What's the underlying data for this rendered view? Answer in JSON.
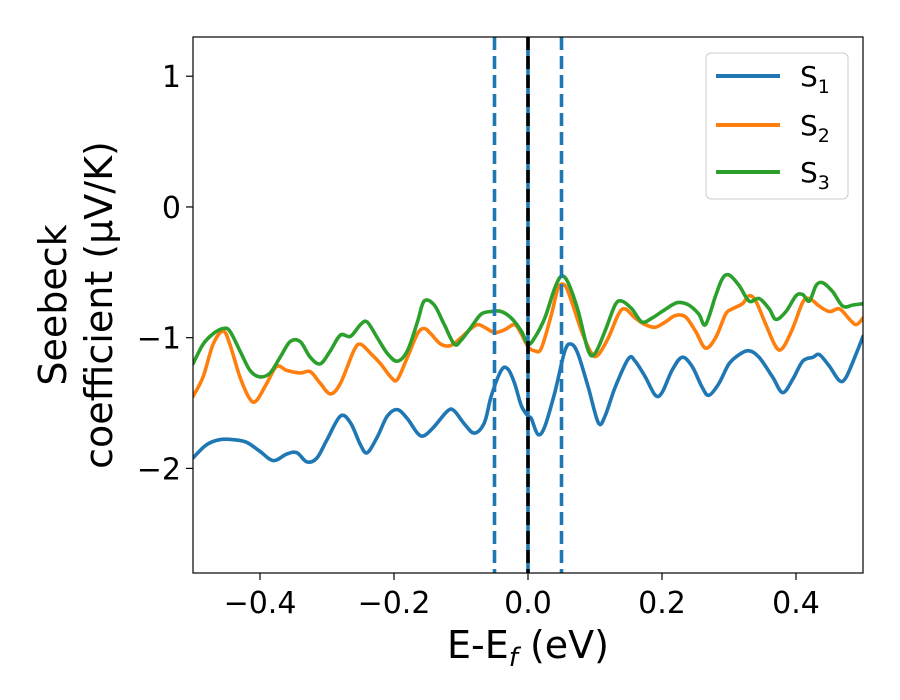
{
  "chart_data": {
    "type": "line",
    "title": "",
    "xlabel": {
      "main": "E-E",
      "sub": "f",
      "suffix": " (eV)"
    },
    "ylabel": {
      "line1": "Seebeck",
      "line2": "coefficient  (μV/K)"
    },
    "xlim": [
      -0.5,
      0.5
    ],
    "ylim": [
      -2.8,
      1.3
    ],
    "xticks": [
      -0.4,
      -0.2,
      0.0,
      0.2,
      0.4
    ],
    "xtick_labels": [
      "−0.4",
      "−0.2",
      "0.0",
      "0.2",
      "0.4"
    ],
    "yticks": [
      -2,
      -1,
      0,
      1
    ],
    "ytick_labels": [
      "−2",
      "−1",
      "0",
      "1"
    ],
    "grid": false,
    "legend_position": "top-right",
    "colors": {
      "S1": "#1f77b4",
      "S2": "#ff7f0e",
      "S3": "#2ca02c",
      "fermi": "#000000",
      "dashed": "#1f77b4"
    },
    "vlines": [
      {
        "x": -0.05,
        "style": "dashed",
        "color": "#1f77b4"
      },
      {
        "x": 0.0,
        "style": "solid",
        "color": "#1f77b4"
      },
      {
        "x": 0.0,
        "style": "dashed",
        "color": "#000000"
      },
      {
        "x": 0.05,
        "style": "dashed",
        "color": "#1f77b4"
      }
    ],
    "series": [
      {
        "name": "S1",
        "label_main": "S",
        "label_sub": "1",
        "color": "#1f77b4",
        "points": [
          [
            -0.5,
            -1.92
          ],
          [
            -0.48,
            -1.82
          ],
          [
            -0.46,
            -1.78
          ],
          [
            -0.44,
            -1.78
          ],
          [
            -0.42,
            -1.8
          ],
          [
            -0.4,
            -1.87
          ],
          [
            -0.38,
            -1.94
          ],
          [
            -0.36,
            -1.89
          ],
          [
            -0.345,
            -1.88
          ],
          [
            -0.33,
            -1.95
          ],
          [
            -0.315,
            -1.92
          ],
          [
            -0.3,
            -1.78
          ],
          [
            -0.28,
            -1.6
          ],
          [
            -0.265,
            -1.65
          ],
          [
            -0.25,
            -1.82
          ],
          [
            -0.24,
            -1.88
          ],
          [
            -0.225,
            -1.76
          ],
          [
            -0.21,
            -1.6
          ],
          [
            -0.195,
            -1.55
          ],
          [
            -0.18,
            -1.62
          ],
          [
            -0.165,
            -1.73
          ],
          [
            -0.155,
            -1.75
          ],
          [
            -0.14,
            -1.68
          ],
          [
            -0.12,
            -1.56
          ],
          [
            -0.11,
            -1.56
          ],
          [
            -0.095,
            -1.66
          ],
          [
            -0.08,
            -1.73
          ],
          [
            -0.065,
            -1.65
          ],
          [
            -0.055,
            -1.45
          ],
          [
            -0.04,
            -1.25
          ],
          [
            -0.03,
            -1.24
          ],
          [
            -0.02,
            -1.35
          ],
          [
            -0.01,
            -1.52
          ],
          [
            0.0,
            -1.6
          ],
          [
            0.005,
            -1.62
          ],
          [
            0.015,
            -1.74
          ],
          [
            0.025,
            -1.68
          ],
          [
            0.04,
            -1.42
          ],
          [
            0.055,
            -1.1
          ],
          [
            0.065,
            -1.05
          ],
          [
            0.075,
            -1.13
          ],
          [
            0.09,
            -1.38
          ],
          [
            0.105,
            -1.65
          ],
          [
            0.115,
            -1.6
          ],
          [
            0.13,
            -1.38
          ],
          [
            0.15,
            -1.16
          ],
          [
            0.16,
            -1.18
          ],
          [
            0.175,
            -1.3
          ],
          [
            0.19,
            -1.44
          ],
          [
            0.2,
            -1.42
          ],
          [
            0.215,
            -1.25
          ],
          [
            0.23,
            -1.15
          ],
          [
            0.245,
            -1.22
          ],
          [
            0.26,
            -1.38
          ],
          [
            0.27,
            -1.44
          ],
          [
            0.285,
            -1.35
          ],
          [
            0.3,
            -1.2
          ],
          [
            0.315,
            -1.13
          ],
          [
            0.33,
            -1.1
          ],
          [
            0.345,
            -1.15
          ],
          [
            0.365,
            -1.3
          ],
          [
            0.38,
            -1.42
          ],
          [
            0.395,
            -1.32
          ],
          [
            0.41,
            -1.18
          ],
          [
            0.425,
            -1.15
          ],
          [
            0.435,
            -1.13
          ],
          [
            0.45,
            -1.22
          ],
          [
            0.465,
            -1.33
          ],
          [
            0.475,
            -1.3
          ],
          [
            0.49,
            -1.12
          ],
          [
            0.5,
            -0.99
          ]
        ]
      },
      {
        "name": "S2",
        "label_main": "S",
        "label_sub": "2",
        "color": "#ff7f0e",
        "points": [
          [
            -0.5,
            -1.45
          ],
          [
            -0.485,
            -1.3
          ],
          [
            -0.47,
            -1.05
          ],
          [
            -0.455,
            -0.95
          ],
          [
            -0.445,
            -1.05
          ],
          [
            -0.43,
            -1.3
          ],
          [
            -0.415,
            -1.47
          ],
          [
            -0.405,
            -1.48
          ],
          [
            -0.39,
            -1.35
          ],
          [
            -0.375,
            -1.22
          ],
          [
            -0.36,
            -1.25
          ],
          [
            -0.34,
            -1.27
          ],
          [
            -0.325,
            -1.26
          ],
          [
            -0.31,
            -1.35
          ],
          [
            -0.295,
            -1.43
          ],
          [
            -0.28,
            -1.35
          ],
          [
            -0.26,
            -1.1
          ],
          [
            -0.25,
            -1.05
          ],
          [
            -0.235,
            -1.12
          ],
          [
            -0.22,
            -1.2
          ],
          [
            -0.205,
            -1.3
          ],
          [
            -0.195,
            -1.32
          ],
          [
            -0.18,
            -1.15
          ],
          [
            -0.165,
            -0.97
          ],
          [
            -0.155,
            -0.93
          ],
          [
            -0.145,
            -0.97
          ],
          [
            -0.13,
            -1.05
          ],
          [
            -0.115,
            -1.06
          ],
          [
            -0.1,
            -1.0
          ],
          [
            -0.085,
            -0.93
          ],
          [
            -0.075,
            -0.9
          ],
          [
            -0.065,
            -0.92
          ],
          [
            -0.05,
            -0.96
          ],
          [
            -0.035,
            -0.94
          ],
          [
            -0.02,
            -0.9
          ],
          [
            -0.01,
            -0.97
          ],
          [
            0.0,
            -1.07
          ],
          [
            0.01,
            -1.1
          ],
          [
            0.02,
            -1.08
          ],
          [
            0.035,
            -0.82
          ],
          [
            0.045,
            -0.62
          ],
          [
            0.055,
            -0.6
          ],
          [
            0.065,
            -0.72
          ],
          [
            0.08,
            -0.95
          ],
          [
            0.095,
            -1.12
          ],
          [
            0.105,
            -1.13
          ],
          [
            0.12,
            -1.0
          ],
          [
            0.135,
            -0.82
          ],
          [
            0.145,
            -0.78
          ],
          [
            0.16,
            -0.85
          ],
          [
            0.175,
            -0.9
          ],
          [
            0.19,
            -0.92
          ],
          [
            0.205,
            -0.88
          ],
          [
            0.22,
            -0.83
          ],
          [
            0.235,
            -0.84
          ],
          [
            0.25,
            -0.95
          ],
          [
            0.265,
            -1.08
          ],
          [
            0.28,
            -1.0
          ],
          [
            0.295,
            -0.82
          ],
          [
            0.305,
            -0.78
          ],
          [
            0.32,
            -0.74
          ],
          [
            0.33,
            -0.68
          ],
          [
            0.34,
            -0.72
          ],
          [
            0.355,
            -0.9
          ],
          [
            0.37,
            -1.07
          ],
          [
            0.38,
            -1.08
          ],
          [
            0.395,
            -0.93
          ],
          [
            0.41,
            -0.73
          ],
          [
            0.42,
            -0.7
          ],
          [
            0.435,
            -0.76
          ],
          [
            0.45,
            -0.8
          ],
          [
            0.465,
            -0.78
          ],
          [
            0.48,
            -0.86
          ],
          [
            0.49,
            -0.9
          ],
          [
            0.5,
            -0.85
          ]
        ]
      },
      {
        "name": "S3",
        "label_main": "S",
        "label_sub": "3",
        "color": "#2ca02c",
        "points": [
          [
            -0.5,
            -1.2
          ],
          [
            -0.485,
            -1.05
          ],
          [
            -0.47,
            -0.97
          ],
          [
            -0.455,
            -0.93
          ],
          [
            -0.445,
            -0.95
          ],
          [
            -0.43,
            -1.1
          ],
          [
            -0.415,
            -1.25
          ],
          [
            -0.4,
            -1.3
          ],
          [
            -0.385,
            -1.27
          ],
          [
            -0.37,
            -1.15
          ],
          [
            -0.355,
            -1.03
          ],
          [
            -0.34,
            -1.03
          ],
          [
            -0.325,
            -1.15
          ],
          [
            -0.31,
            -1.2
          ],
          [
            -0.295,
            -1.1
          ],
          [
            -0.28,
            -0.98
          ],
          [
            -0.265,
            -0.99
          ],
          [
            -0.25,
            -0.9
          ],
          [
            -0.24,
            -0.88
          ],
          [
            -0.225,
            -1.0
          ],
          [
            -0.21,
            -1.12
          ],
          [
            -0.195,
            -1.18
          ],
          [
            -0.18,
            -1.1
          ],
          [
            -0.165,
            -0.88
          ],
          [
            -0.155,
            -0.72
          ],
          [
            -0.14,
            -0.75
          ],
          [
            -0.125,
            -0.9
          ],
          [
            -0.11,
            -1.05
          ],
          [
            -0.1,
            -1.02
          ],
          [
            -0.085,
            -0.92
          ],
          [
            -0.07,
            -0.82
          ],
          [
            -0.055,
            -0.8
          ],
          [
            -0.04,
            -0.8
          ],
          [
            -0.025,
            -0.85
          ],
          [
            -0.01,
            -0.95
          ],
          [
            0.0,
            -1.05
          ],
          [
            0.01,
            -1.0
          ],
          [
            0.025,
            -0.85
          ],
          [
            0.04,
            -0.62
          ],
          [
            0.05,
            -0.53
          ],
          [
            0.06,
            -0.58
          ],
          [
            0.075,
            -0.8
          ],
          [
            0.09,
            -1.1
          ],
          [
            0.1,
            -1.12
          ],
          [
            0.115,
            -0.95
          ],
          [
            0.13,
            -0.75
          ],
          [
            0.14,
            -0.72
          ],
          [
            0.155,
            -0.78
          ],
          [
            0.17,
            -0.88
          ],
          [
            0.185,
            -0.85
          ],
          [
            0.2,
            -0.8
          ],
          [
            0.215,
            -0.75
          ],
          [
            0.225,
            -0.73
          ],
          [
            0.24,
            -0.75
          ],
          [
            0.255,
            -0.82
          ],
          [
            0.265,
            -0.9
          ],
          [
            0.28,
            -0.68
          ],
          [
            0.29,
            -0.55
          ],
          [
            0.3,
            -0.52
          ],
          [
            0.315,
            -0.6
          ],
          [
            0.33,
            -0.72
          ],
          [
            0.345,
            -0.7
          ],
          [
            0.36,
            -0.78
          ],
          [
            0.37,
            -0.86
          ],
          [
            0.385,
            -0.8
          ],
          [
            0.4,
            -0.68
          ],
          [
            0.41,
            -0.67
          ],
          [
            0.42,
            -0.72
          ],
          [
            0.43,
            -0.6
          ],
          [
            0.44,
            -0.58
          ],
          [
            0.455,
            -0.65
          ],
          [
            0.47,
            -0.76
          ],
          [
            0.485,
            -0.75
          ],
          [
            0.5,
            -0.74
          ]
        ]
      }
    ]
  }
}
